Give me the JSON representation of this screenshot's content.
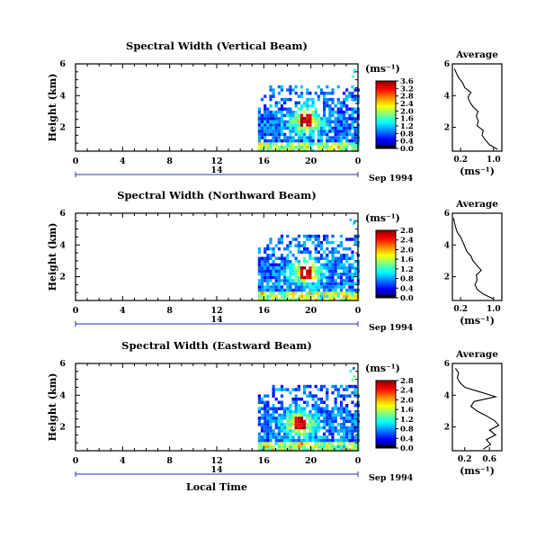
{
  "chart_data": [
    {
      "type": "heatmap",
      "title": "Spectral Width (Vertical Beam)",
      "ylabel": "Height (km)",
      "xticks": [
        "0",
        "4",
        "8",
        "12",
        "16",
        "20",
        "0"
      ],
      "yticks": [
        "2",
        "4",
        "6"
      ],
      "date_label": "14",
      "month_label": "Sep 1994",
      "xlim": [
        0,
        24
      ],
      "ylim": [
        0.5,
        6.0
      ],
      "data_coverage_hours": [
        15.5,
        24
      ],
      "peak": {
        "time_h": 19.5,
        "height_km": 2.4,
        "value": 3.6
      },
      "colorbar": {
        "unit": "(ms⁻¹)",
        "ticks": [
          "0.0",
          "0.4",
          "0.8",
          "1.2",
          "1.6",
          "2.0",
          "2.4",
          "2.8",
          "3.2",
          "3.6"
        ],
        "range": [
          0,
          3.6
        ]
      },
      "average_profile": {
        "title": "Average",
        "xlabel": "(ms⁻¹)",
        "xticks": [
          "0.2",
          "1.0"
        ],
        "xlim": [
          0,
          1.2
        ],
        "yticks": [
          "2",
          "4",
          "6"
        ],
        "height_km": [
          0.6,
          0.9,
          1.2,
          1.5,
          1.8,
          2.1,
          2.4,
          2.7,
          3.0,
          3.3,
          3.6,
          3.9,
          4.2,
          4.5,
          4.8,
          5.1,
          5.4,
          5.7
        ],
        "values": [
          1.1,
          0.9,
          0.8,
          0.72,
          0.75,
          0.6,
          0.63,
          0.58,
          0.62,
          0.5,
          0.42,
          0.38,
          0.45,
          0.3,
          0.25,
          0.16,
          0.1,
          0.05
        ]
      }
    },
    {
      "type": "heatmap",
      "title": "Spectral Width (Northward Beam)",
      "ylabel": "Height (km)",
      "xticks": [
        "0",
        "4",
        "8",
        "12",
        "16",
        "20",
        "0"
      ],
      "yticks": [
        "2",
        "4",
        "6"
      ],
      "date_label": "14",
      "month_label": "Sep 1994",
      "xlim": [
        0,
        24
      ],
      "ylim": [
        0.5,
        6.0
      ],
      "data_coverage_hours": [
        15.5,
        24
      ],
      "peak": {
        "time_h": 19.5,
        "height_km": 2.3,
        "value": 2.8
      },
      "colorbar": {
        "unit": "(ms⁻¹)",
        "ticks": [
          "0.0",
          "0.4",
          "0.8",
          "1.2",
          "1.6",
          "2.0",
          "2.4",
          "2.8"
        ],
        "range": [
          0,
          2.8
        ]
      },
      "average_profile": {
        "title": "Average",
        "xlabel": "(ms⁻¹)",
        "xticks": [
          "0.2",
          "1.0"
        ],
        "xlim": [
          0,
          1.2
        ],
        "yticks": [
          "2",
          "4",
          "6"
        ],
        "height_km": [
          0.6,
          0.9,
          1.2,
          1.5,
          1.8,
          2.1,
          2.4,
          2.7,
          3.0,
          3.3,
          3.6,
          3.9,
          4.2,
          4.5,
          4.8,
          5.1,
          5.4,
          5.7
        ],
        "values": [
          1.0,
          0.75,
          0.6,
          0.55,
          0.6,
          0.58,
          0.7,
          0.6,
          0.5,
          0.45,
          0.35,
          0.3,
          0.25,
          0.2,
          0.12,
          0.08,
          0.05,
          0.03
        ]
      }
    },
    {
      "type": "heatmap",
      "title": "Spectral Width (Eastward Beam)",
      "ylabel": "Height (km)",
      "xlabel": "Local Time",
      "xticks": [
        "0",
        "4",
        "8",
        "12",
        "16",
        "20",
        "0"
      ],
      "yticks": [
        "2",
        "4",
        "6"
      ],
      "date_label": "14",
      "month_label": "Sep 1994",
      "xlim": [
        0,
        24
      ],
      "ylim": [
        0.5,
        6.0
      ],
      "data_coverage_hours": [
        15.5,
        24
      ],
      "peak": {
        "time_h": 19.0,
        "height_km": 2.2,
        "value": 2.8
      },
      "colorbar": {
        "unit": "(ms⁻¹)",
        "ticks": [
          "0.0",
          "0.4",
          "0.8",
          "1.2",
          "1.6",
          "2.0",
          "2.4",
          "2.8"
        ],
        "range": [
          0,
          2.8
        ]
      },
      "average_profile": {
        "title": "Average",
        "xlabel": "(ms⁻¹)",
        "xticks": [
          "0.2",
          "0.6"
        ],
        "xlim": [
          0,
          0.8
        ],
        "yticks": [
          "2",
          "4",
          "6"
        ],
        "height_km": [
          0.6,
          0.9,
          1.2,
          1.5,
          1.8,
          2.1,
          2.4,
          2.7,
          3.0,
          3.3,
          3.6,
          3.9,
          4.2,
          4.5,
          4.8,
          5.1,
          5.4,
          5.7
        ],
        "values": [
          0.5,
          0.62,
          0.55,
          0.7,
          0.6,
          0.75,
          0.68,
          0.55,
          0.4,
          0.3,
          0.35,
          0.7,
          0.45,
          0.2,
          0.12,
          0.08,
          0.1,
          0.05
        ]
      }
    }
  ]
}
